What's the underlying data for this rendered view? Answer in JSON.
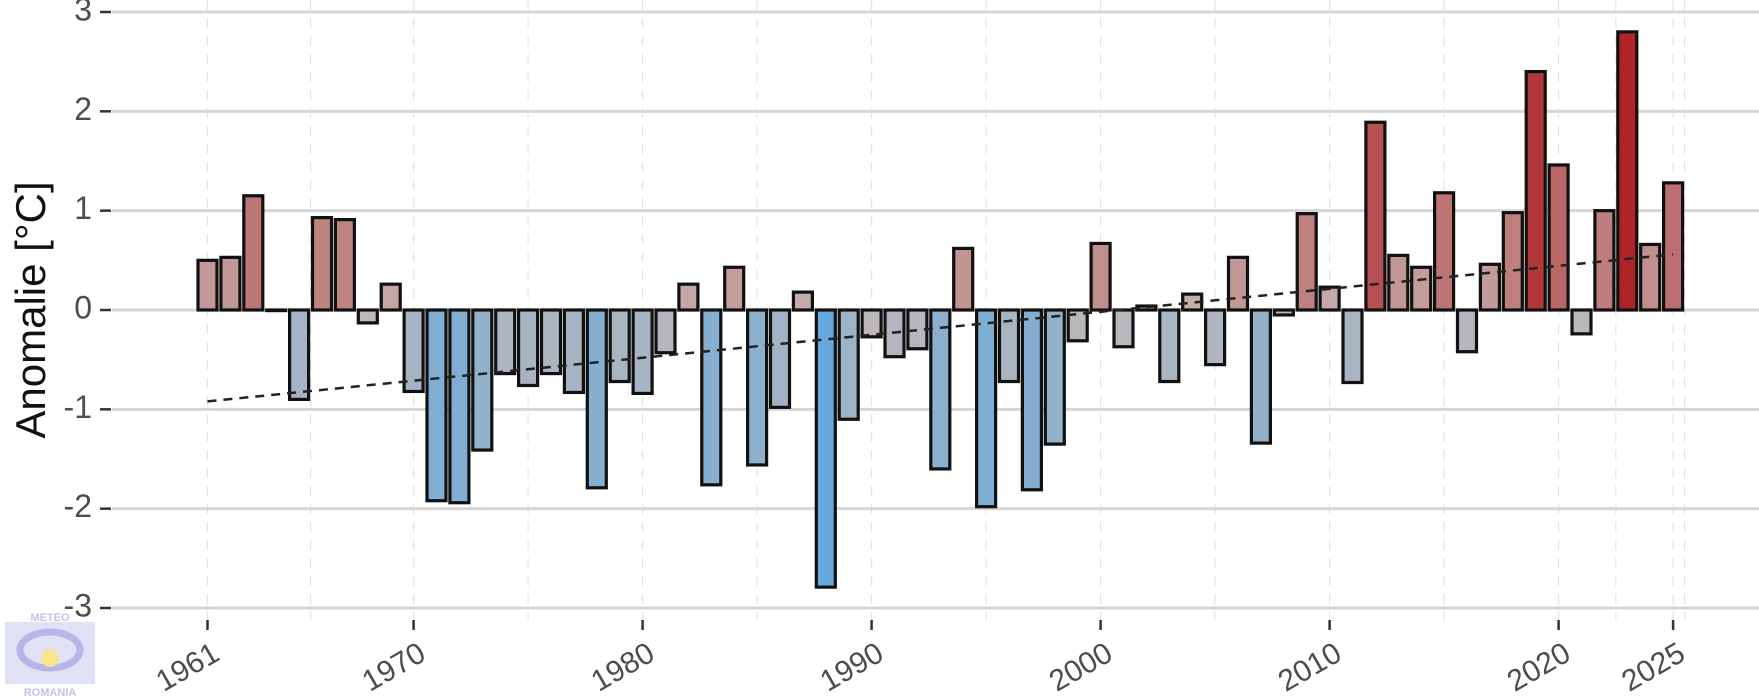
{
  "logo": {
    "top_text": "METEO",
    "bottom_text": "ROMANIA"
  },
  "chart_data": {
    "type": "bar",
    "title": "",
    "xlabel": "",
    "ylabel": "Anomalie [°C]",
    "ylim": [
      -3,
      3
    ],
    "xlim": [
      1959.5,
      2026.5
    ],
    "yticks": [
      3,
      2,
      1,
      0,
      -1,
      -2,
      -3
    ],
    "ytick_labels": [
      "3",
      "2",
      "1",
      "0",
      "-1",
      "-2",
      "-3"
    ],
    "xticks": [
      1961,
      1970,
      1980,
      1990,
      2000,
      2010,
      2020,
      2025
    ],
    "xtick_labels": [
      "1961",
      "1970",
      "1980",
      "1990",
      "2000",
      "2010",
      "2020",
      "2025"
    ],
    "grid": "horizontal solid major, vertical dashed",
    "colors": {
      "cold": "#5fa9e0",
      "neutral": "#c7b9b6",
      "warm": "#ad1a1f",
      "edge": "#111111",
      "trend": "#222222"
    },
    "years": [
      1961,
      1962,
      1963,
      1964,
      1965,
      1966,
      1967,
      1968,
      1969,
      1970,
      1971,
      1972,
      1973,
      1974,
      1975,
      1976,
      1977,
      1978,
      1979,
      1980,
      1981,
      1982,
      1983,
      1984,
      1985,
      1986,
      1987,
      1988,
      1989,
      1990,
      1991,
      1992,
      1993,
      1994,
      1995,
      1996,
      1997,
      1998,
      1999,
      2000,
      2001,
      2002,
      2003,
      2004,
      2005,
      2006,
      2007,
      2008,
      2009,
      2010,
      2011,
      2012,
      2013,
      2014,
      2015,
      2016,
      2017,
      2018,
      2019,
      2020,
      2021,
      2022,
      2023,
      2024,
      2025
    ],
    "values": [
      0.5,
      0.53,
      1.15,
      0.0,
      -0.9,
      0.93,
      0.91,
      -0.13,
      0.26,
      -0.82,
      -1.92,
      -1.94,
      -1.41,
      -0.64,
      -0.76,
      -0.64,
      -0.83,
      -1.79,
      -0.72,
      -0.84,
      -0.43,
      0.26,
      -1.76,
      0.43,
      -1.56,
      -0.98,
      0.18,
      -2.79,
      -1.1,
      -0.27,
      -0.47,
      -0.39,
      -1.6,
      0.62,
      -1.98,
      -0.72,
      -1.81,
      -1.35,
      -0.31,
      0.67,
      -0.37,
      0.04,
      -0.72,
      0.16,
      -0.55,
      0.53,
      -1.34,
      -0.05,
      0.97,
      0.23,
      -0.73,
      1.89,
      0.55,
      0.43,
      1.18,
      -0.42,
      0.46,
      0.98,
      2.4,
      1.46,
      -0.24,
      1.0,
      2.8,
      0.66,
      1.28
    ],
    "trend": {
      "x": [
        1961,
        2025
      ],
      "y": [
        -0.92,
        0.56
      ],
      "style": "dashed"
    }
  }
}
